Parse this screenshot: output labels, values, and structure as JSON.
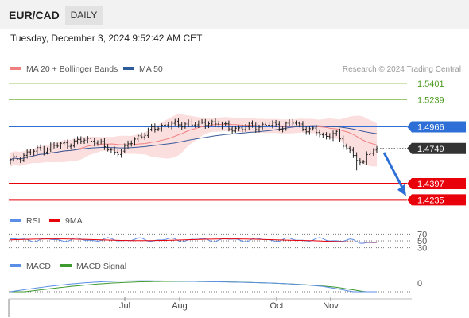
{
  "header": {
    "pair": "EUR/CAD",
    "period": "DAILY",
    "datetime": "Tuesday, December 3, 2024 9:52:42 AM CET"
  },
  "chart_data": [
    {
      "type": "candlestick",
      "panel": "price",
      "legend": [
        {
          "label": "MA 20 + Bollinger Bands",
          "color": "#f08080"
        },
        {
          "label": "MA 50",
          "color": "#2e5c9a"
        }
      ],
      "credit": "Research © 2024 Trading Central",
      "ylim": [
        1.415,
        1.548
      ],
      "x_ticks": [
        "Jul",
        "Aug",
        "Oct",
        "Nov"
      ],
      "levels": [
        {
          "value": 1.5401,
          "label": "1.5401",
          "kind": "resistance",
          "color": "#7cb342"
        },
        {
          "value": 1.5239,
          "label": "1.5239",
          "kind": "resistance",
          "color": "#7cb342"
        },
        {
          "value": 1.4966,
          "label": "1.4966",
          "kind": "pivot",
          "color": "#2d6fd6"
        },
        {
          "value": 1.4749,
          "label": "1.4749",
          "kind": "last",
          "color": "#333333"
        },
        {
          "value": 1.4397,
          "label": "1.4397",
          "kind": "support",
          "color": "#e8000b"
        },
        {
          "value": 1.4235,
          "label": "1.4235",
          "kind": "support",
          "color": "#e8000b"
        }
      ],
      "arrow": {
        "direction": "down",
        "from": 1.474,
        "to": 1.424,
        "color": "#2d6fd6"
      }
    },
    {
      "type": "line",
      "panel": "rsi",
      "legend": [
        {
          "label": "RSI",
          "color": "#5b8ee6"
        },
        {
          "label": "9MA",
          "color": "#e8000b"
        }
      ],
      "y_ticks": [
        70,
        50,
        30
      ],
      "ylim": [
        20,
        80
      ]
    },
    {
      "type": "line",
      "panel": "macd",
      "legend": [
        {
          "label": "MACD",
          "color": "#5b8ee6"
        },
        {
          "label": "MACD Signal",
          "color": "#3d9a2e"
        }
      ],
      "y_ticks": [
        0
      ]
    }
  ]
}
